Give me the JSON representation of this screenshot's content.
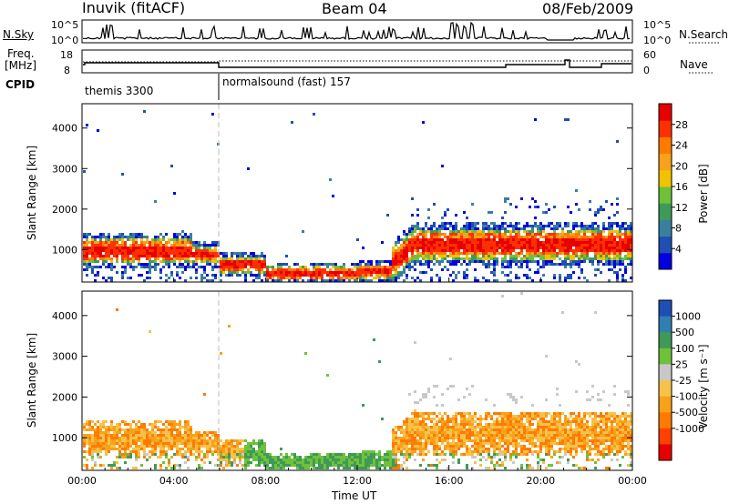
{
  "header": {
    "station": "Inuvik (fitACF)",
    "beam": "Beam 04",
    "date": "08/Feb/2009"
  },
  "nsky_panel": {
    "label": "N.Sky",
    "ytick_top": "10^5",
    "ytick_bottom": "10^0",
    "right_label": "N.Search",
    "right_tick_top": "10^5",
    "right_tick_bottom": "10^0"
  },
  "freq_panel": {
    "label_line1": "Freq.",
    "label_line2": "[MHz]",
    "ytick_top": "18",
    "ytick_bottom": "8",
    "right_label": "Nave",
    "right_tick_top": "60",
    "right_tick_bottom": "0"
  },
  "cpid_panel": {
    "label": "CPID",
    "modes": [
      {
        "name": "themis 3300",
        "start_hour": 0
      },
      {
        "name": "normalsound (fast) 157",
        "start_hour": 6
      }
    ]
  },
  "chart_data": [
    {
      "type": "heatmap",
      "name": "power",
      "ylabel": "Slant Range [km]",
      "yticks": [
        "1000",
        "2000",
        "3000",
        "4000"
      ],
      "ylim": [
        200,
        4600
      ],
      "xlim_hours": [
        0,
        24
      ],
      "colorbar_label": "Power [dB]",
      "colorbar_ticks": [
        "4",
        "8",
        "12",
        "16",
        "20",
        "24",
        "28"
      ],
      "colorbar_colors": [
        "#0000e0",
        "#1f4fb5",
        "#3a7fa0",
        "#3f9a58",
        "#6ec23a",
        "#f2c200",
        "#f7a21a",
        "#ff7a00",
        "#ff3000",
        "#e60000"
      ]
    },
    {
      "type": "heatmap",
      "name": "velocity",
      "ylabel": "Slant Range [km]",
      "yticks": [
        "1000",
        "2000",
        "3000",
        "4000"
      ],
      "ylim": [
        200,
        4600
      ],
      "xlim_hours": [
        0,
        24
      ],
      "xlabel": "Time UT",
      "xticks": [
        "00:00",
        "04:00",
        "08:00",
        "12:00",
        "16:00",
        "20:00",
        "00:00"
      ],
      "colorbar_label": "Velocity [m s⁻¹]",
      "colorbar_ticks": [
        "1000",
        "500",
        "100",
        "25",
        "-25",
        "-100",
        "-500",
        "-1000"
      ],
      "colorbar_colors": [
        "#1f4fb5",
        "#2f7fb0",
        "#3f9a58",
        "#6ec23a",
        "#c8c8c8",
        "#f7c24a",
        "#f7a21a",
        "#ff7a00",
        "#ff4000",
        "#e60000"
      ]
    }
  ]
}
